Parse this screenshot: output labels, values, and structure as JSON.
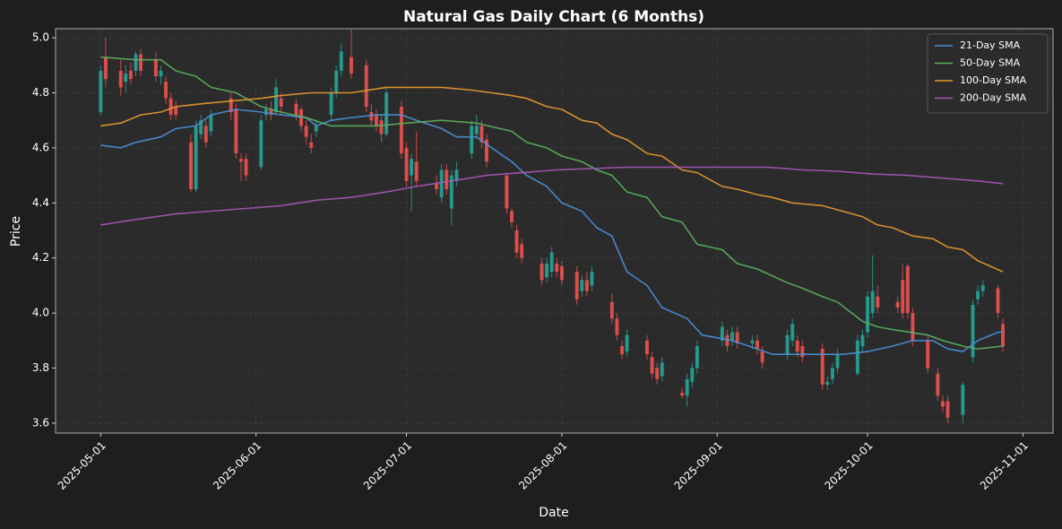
{
  "chart_data": {
    "type": "candlestick",
    "title": "Natural Gas Daily Chart (6 Months)",
    "xlabel": "Date",
    "ylabel": "Price",
    "up_color": "#26a69a",
    "down_color": "#ef5350",
    "xlim": [
      "2025-04-22",
      "2025-11-07"
    ],
    "xticks": [
      "2025-05-01",
      "2025-06-01",
      "2025-07-01",
      "2025-08-01",
      "2025-09-01",
      "2025-10-01",
      "2025-11-01"
    ],
    "ylim": [
      3.564,
      5.033
    ],
    "yticks": [
      3.6,
      3.8,
      {
        "value": 4,
        "label": "4.0"
      },
      4.2,
      4.4,
      4.6,
      4.8,
      {
        "value": 5,
        "label": "5.0"
      }
    ],
    "grid": true,
    "legend": "upper right",
    "x": [
      "2025-05-01",
      "2025-05-02",
      "2025-05-05",
      "2025-05-06",
      "2025-05-07",
      "2025-05-08",
      "2025-05-09",
      "2025-05-12",
      "2025-05-13",
      "2025-05-14",
      "2025-05-15",
      "2025-05-16",
      "2025-05-19",
      "2025-05-20",
      "2025-05-21",
      "2025-05-22",
      "2025-05-23",
      "2025-05-27",
      "2025-05-28",
      "2025-05-29",
      "2025-05-30",
      "2025-06-02",
      "2025-06-03",
      "2025-06-04",
      "2025-06-05",
      "2025-06-06",
      "2025-06-09",
      "2025-06-10",
      "2025-06-11",
      "2025-06-12",
      "2025-06-13",
      "2025-06-16",
      "2025-06-17",
      "2025-06-18",
      "2025-06-20",
      "2025-06-23",
      "2025-06-24",
      "2025-06-25",
      "2025-06-26",
      "2025-06-27",
      "2025-06-30",
      "2025-07-01",
      "2025-07-02",
      "2025-07-03",
      "2025-07-07",
      "2025-07-08",
      "2025-07-09",
      "2025-07-10",
      "2025-07-11",
      "2025-07-14",
      "2025-07-15",
      "2025-07-16",
      "2025-07-17",
      "2025-07-21",
      "2025-07-22",
      "2025-07-23",
      "2025-07-24",
      "2025-07-28",
      "2025-07-29",
      "2025-07-30",
      "2025-07-31",
      "2025-08-01",
      "2025-08-04",
      "2025-08-05",
      "2025-08-06",
      "2025-08-07",
      "2025-08-11",
      "2025-08-12",
      "2025-08-13",
      "2025-08-14",
      "2025-08-18",
      "2025-08-19",
      "2025-08-20",
      "2025-08-21",
      "2025-08-25",
      "2025-08-26",
      "2025-08-27",
      "2025-08-28",
      "2025-09-02",
      "2025-09-03",
      "2025-09-04",
      "2025-09-05",
      "2025-09-08",
      "2025-09-09",
      "2025-09-10",
      "2025-09-15",
      "2025-09-16",
      "2025-09-17",
      "2025-09-18",
      "2025-09-22",
      "2025-09-23",
      "2025-09-24",
      "2025-09-25",
      "2025-09-29",
      "2025-09-30",
      "2025-10-01",
      "2025-10-02",
      "2025-10-03",
      "2025-10-07",
      "2025-10-08",
      "2025-10-09",
      "2025-10-10",
      "2025-10-13",
      "2025-10-15",
      "2025-10-16",
      "2025-10-17",
      "2025-10-20",
      "2025-10-22",
      "2025-10-23",
      "2025-10-24",
      "2025-10-27",
      "2025-10-28"
    ],
    "open": [
      4.73,
      4.93,
      4.88,
      4.84,
      4.88,
      4.88,
      4.94,
      4.92,
      4.86,
      4.84,
      4.78,
      4.75,
      4.62,
      4.45,
      4.65,
      4.68,
      4.66,
      4.78,
      4.74,
      4.56,
      4.56,
      4.53,
      4.72,
      4.74,
      4.73,
      4.78,
      4.76,
      4.74,
      4.68,
      4.62,
      4.66,
      4.72,
      4.8,
      4.88,
      4.93,
      4.9,
      4.73,
      4.72,
      4.7,
      4.65,
      4.75,
      4.6,
      4.5,
      4.55,
      4.47,
      4.42,
      4.52,
      4.38,
      4.48,
      4.58,
      4.65,
      4.68,
      4.63,
      4.5,
      4.37,
      4.3,
      4.25,
      4.18,
      4.13,
      4.15,
      4.18,
      4.17,
      4.15,
      4.08,
      4.12,
      4.1,
      4.04,
      3.98,
      3.88,
      3.86,
      3.9,
      3.84,
      3.8,
      3.77,
      3.71,
      3.7,
      3.75,
      3.8,
      3.9,
      3.92,
      3.9,
      3.93,
      3.89,
      3.9,
      3.86,
      3.85,
      3.9,
      3.9,
      3.88,
      3.87,
      3.74,
      3.76,
      3.8,
      3.78,
      3.88,
      3.93,
      4.0,
      4.06,
      4.04,
      4.12,
      4.17,
      4.0,
      3.9,
      3.78,
      3.68,
      3.68,
      3.63,
      3.84,
      4.05,
      4.08,
      4.09,
      3.96
    ],
    "high": [
      4.9,
      5.0,
      4.92,
      4.9,
      4.91,
      4.95,
      4.96,
      4.95,
      4.9,
      4.86,
      4.8,
      4.77,
      4.65,
      4.7,
      4.72,
      4.7,
      4.74,
      4.8,
      4.76,
      4.58,
      4.58,
      4.72,
      4.76,
      4.77,
      4.85,
      4.8,
      4.78,
      4.75,
      4.7,
      4.65,
      4.7,
      4.82,
      4.9,
      4.98,
      5.03,
      4.92,
      4.76,
      4.74,
      4.72,
      4.82,
      4.77,
      4.62,
      4.58,
      4.66,
      4.5,
      4.54,
      4.54,
      4.52,
      4.55,
      4.7,
      4.72,
      4.7,
      4.65,
      4.51,
      4.38,
      4.32,
      4.27,
      4.2,
      4.2,
      4.24,
      4.2,
      4.19,
      4.17,
      4.14,
      4.15,
      4.17,
      4.07,
      4.0,
      3.9,
      3.94,
      3.92,
      3.86,
      3.82,
      3.84,
      3.73,
      3.78,
      3.82,
      3.9,
      3.97,
      3.94,
      3.95,
      3.95,
      3.92,
      3.92,
      3.88,
      3.94,
      3.98,
      3.92,
      3.9,
      3.89,
      3.77,
      3.82,
      3.87,
      3.92,
      3.94,
      4.08,
      4.21,
      4.1,
      4.06,
      4.18,
      4.18,
      4.02,
      3.92,
      3.8,
      3.7,
      3.7,
      3.75,
      4.05,
      4.1,
      4.12,
      4.1,
      3.98
    ],
    "low": [
      4.72,
      4.82,
      4.79,
      4.8,
      4.83,
      4.86,
      4.86,
      4.84,
      4.83,
      4.76,
      4.7,
      4.7,
      4.44,
      4.44,
      4.63,
      4.6,
      4.64,
      4.7,
      4.56,
      4.48,
      4.48,
      4.52,
      4.7,
      4.7,
      4.72,
      4.72,
      4.7,
      4.66,
      4.61,
      4.58,
      4.64,
      4.7,
      4.78,
      4.86,
      4.85,
      4.73,
      4.68,
      4.66,
      4.62,
      4.64,
      4.56,
      4.46,
      4.37,
      4.46,
      4.43,
      4.4,
      4.43,
      4.32,
      4.46,
      4.56,
      4.63,
      4.6,
      4.53,
      4.36,
      4.31,
      4.2,
      4.18,
      4.1,
      4.11,
      4.13,
      4.13,
      4.1,
      4.03,
      4.06,
      4.06,
      4.08,
      3.96,
      3.9,
      3.83,
      3.84,
      3.83,
      3.76,
      3.74,
      3.75,
      3.69,
      3.66,
      3.73,
      3.78,
      3.88,
      3.86,
      3.88,
      3.87,
      3.87,
      3.85,
      3.8,
      3.83,
      3.88,
      3.84,
      3.82,
      3.72,
      3.72,
      3.74,
      3.78,
      3.77,
      3.86,
      3.91,
      3.98,
      4.0,
      4.0,
      3.98,
      3.98,
      3.88,
      3.78,
      3.68,
      3.64,
      3.6,
      3.6,
      3.82,
      4.03,
      4.06,
      3.98,
      3.86
    ],
    "close": [
      4.88,
      4.85,
      4.82,
      4.87,
      4.85,
      4.94,
      4.88,
      4.86,
      4.88,
      4.78,
      4.72,
      4.72,
      4.45,
      4.68,
      4.7,
      4.62,
      4.72,
      4.73,
      4.58,
      4.55,
      4.5,
      4.7,
      4.74,
      4.72,
      4.82,
      4.75,
      4.72,
      4.68,
      4.64,
      4.6,
      4.68,
      4.8,
      4.88,
      4.95,
      4.87,
      4.75,
      4.7,
      4.68,
      4.65,
      4.8,
      4.58,
      4.48,
      4.56,
      4.48,
      4.45,
      4.52,
      4.45,
      4.5,
      4.52,
      4.68,
      4.68,
      4.62,
      4.55,
      4.38,
      4.33,
      4.22,
      4.2,
      4.12,
      4.18,
      4.22,
      4.15,
      4.12,
      4.05,
      4.12,
      4.08,
      4.15,
      3.98,
      3.92,
      3.85,
      3.92,
      3.85,
      3.78,
      3.76,
      3.82,
      3.7,
      3.76,
      3.8,
      3.88,
      3.95,
      3.88,
      3.93,
      3.89,
      3.9,
      3.87,
      3.82,
      3.92,
      3.96,
      3.86,
      3.84,
      3.74,
      3.75,
      3.8,
      3.85,
      3.9,
      3.92,
      4.06,
      4.08,
      4.02,
      4.02,
      4.0,
      4.0,
      3.9,
      3.8,
      3.7,
      3.66,
      3.62,
      3.74,
      4.03,
      4.08,
      4.1,
      4.0,
      3.88
    ],
    "series": [
      {
        "name": "21-Day SMA",
        "color": "#4a90d9",
        "x": [
          "2025-05-01",
          "2025-05-05",
          "2025-05-08",
          "2025-05-13",
          "2025-05-16",
          "2025-05-20",
          "2025-05-23",
          "2025-05-28",
          "2025-06-02",
          "2025-06-06",
          "2025-06-11",
          "2025-06-13",
          "2025-06-16",
          "2025-06-20",
          "2025-06-25",
          "2025-06-30",
          "2025-07-03",
          "2025-07-08",
          "2025-07-11",
          "2025-07-15",
          "2025-07-18",
          "2025-07-22",
          "2025-07-25",
          "2025-07-29",
          "2025-08-01",
          "2025-08-05",
          "2025-08-08",
          "2025-08-11",
          "2025-08-14",
          "2025-08-18",
          "2025-08-21",
          "2025-08-26",
          "2025-08-29",
          "2025-09-04",
          "2025-09-09",
          "2025-09-12",
          "2025-09-17",
          "2025-09-22",
          "2025-09-26",
          "2025-10-01",
          "2025-10-06",
          "2025-10-10",
          "2025-10-14",
          "2025-10-17",
          "2025-10-20",
          "2025-10-23",
          "2025-10-27",
          "2025-10-28"
        ],
        "values": [
          4.61,
          4.6,
          4.62,
          4.64,
          4.67,
          4.68,
          4.72,
          4.74,
          4.73,
          4.72,
          4.71,
          4.68,
          4.7,
          4.71,
          4.72,
          4.72,
          4.7,
          4.67,
          4.64,
          4.64,
          4.6,
          4.55,
          4.5,
          4.46,
          4.4,
          4.37,
          4.31,
          4.28,
          4.15,
          4.1,
          4.02,
          3.98,
          3.92,
          3.9,
          3.87,
          3.85,
          3.85,
          3.85,
          3.85,
          3.86,
          3.88,
          3.9,
          3.9,
          3.87,
          3.86,
          3.9,
          3.93,
          3.93
        ]
      },
      {
        "name": "50-Day SMA",
        "color": "#5cb060",
        "x": [
          "2025-05-01",
          "2025-05-08",
          "2025-05-13",
          "2025-05-16",
          "2025-05-20",
          "2025-05-23",
          "2025-05-28",
          "2025-06-02",
          "2025-06-06",
          "2025-06-11",
          "2025-06-16",
          "2025-06-20",
          "2025-06-25",
          "2025-07-01",
          "2025-07-08",
          "2025-07-15",
          "2025-07-22",
          "2025-07-25",
          "2025-07-29",
          "2025-08-01",
          "2025-08-05",
          "2025-08-08",
          "2025-08-11",
          "2025-08-14",
          "2025-08-18",
          "2025-08-21",
          "2025-08-25",
          "2025-08-28",
          "2025-09-02",
          "2025-09-05",
          "2025-09-09",
          "2025-09-15",
          "2025-09-18",
          "2025-09-22",
          "2025-09-25",
          "2025-09-30",
          "2025-10-03",
          "2025-10-06",
          "2025-10-13",
          "2025-10-16",
          "2025-10-20",
          "2025-10-23",
          "2025-10-28"
        ],
        "values": [
          4.93,
          4.92,
          4.92,
          4.88,
          4.86,
          4.82,
          4.8,
          4.75,
          4.73,
          4.71,
          4.68,
          4.68,
          4.68,
          4.69,
          4.7,
          4.69,
          4.66,
          4.62,
          4.6,
          4.57,
          4.55,
          4.52,
          4.5,
          4.44,
          4.42,
          4.35,
          4.33,
          4.25,
          4.23,
          4.18,
          4.16,
          4.11,
          4.09,
          4.06,
          4.04,
          3.97,
          3.95,
          3.94,
          3.92,
          3.9,
          3.88,
          3.87,
          3.88
        ]
      },
      {
        "name": "100-Day SMA",
        "color": "#e89a30",
        "x": [
          "2025-05-01",
          "2025-05-05",
          "2025-05-09",
          "2025-05-13",
          "2025-05-16",
          "2025-05-21",
          "2025-05-27",
          "2025-06-02",
          "2025-06-06",
          "2025-06-12",
          "2025-06-20",
          "2025-06-27",
          "2025-07-03",
          "2025-07-08",
          "2025-07-14",
          "2025-07-18",
          "2025-07-22",
          "2025-07-25",
          "2025-07-29",
          "2025-08-01",
          "2025-08-05",
          "2025-08-08",
          "2025-08-11",
          "2025-08-14",
          "2025-08-18",
          "2025-08-21",
          "2025-08-25",
          "2025-08-28",
          "2025-09-02",
          "2025-09-05",
          "2025-09-09",
          "2025-09-12",
          "2025-09-16",
          "2025-09-22",
          "2025-09-26",
          "2025-09-30",
          "2025-10-03",
          "2025-10-06",
          "2025-10-10",
          "2025-10-14",
          "2025-10-17",
          "2025-10-20",
          "2025-10-23",
          "2025-10-28"
        ],
        "values": [
          4.68,
          4.69,
          4.72,
          4.73,
          4.75,
          4.76,
          4.77,
          4.78,
          4.79,
          4.8,
          4.8,
          4.82,
          4.82,
          4.82,
          4.81,
          4.8,
          4.79,
          4.78,
          4.75,
          4.74,
          4.7,
          4.69,
          4.65,
          4.63,
          4.58,
          4.57,
          4.52,
          4.51,
          4.46,
          4.45,
          4.43,
          4.42,
          4.4,
          4.39,
          4.37,
          4.35,
          4.32,
          4.31,
          4.28,
          4.27,
          4.24,
          4.23,
          4.19,
          4.15
        ]
      },
      {
        "name": "200-Day SMA",
        "color": "#a855b8",
        "x": [
          "2025-05-01",
          "2025-05-08",
          "2025-05-16",
          "2025-05-23",
          "2025-05-30",
          "2025-06-06",
          "2025-06-13",
          "2025-06-20",
          "2025-06-27",
          "2025-07-03",
          "2025-07-10",
          "2025-07-17",
          "2025-07-24",
          "2025-07-31",
          "2025-08-07",
          "2025-08-14",
          "2025-08-28",
          "2025-09-11",
          "2025-09-18",
          "2025-09-25",
          "2025-10-02",
          "2025-10-09",
          "2025-10-16",
          "2025-10-23",
          "2025-10-28"
        ],
        "values": [
          4.32,
          4.34,
          4.36,
          4.37,
          4.38,
          4.39,
          4.41,
          4.42,
          4.44,
          4.46,
          4.48,
          4.5,
          4.51,
          4.52,
          4.525,
          4.53,
          4.53,
          4.53,
          4.52,
          4.515,
          4.505,
          4.5,
          4.49,
          4.48,
          4.47
        ]
      }
    ]
  }
}
